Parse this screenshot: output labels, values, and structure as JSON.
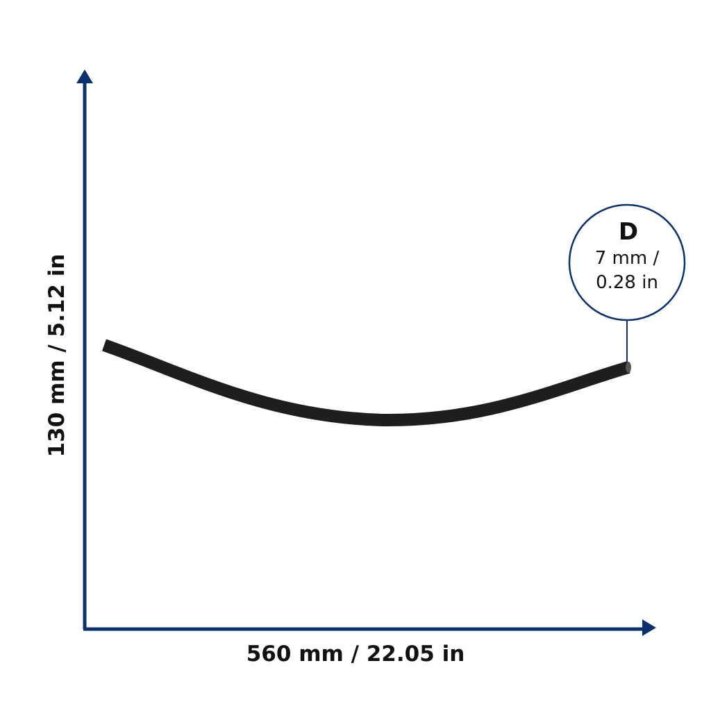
{
  "dimensions": {
    "height_label": "130 mm / 5.12 in",
    "width_label": "560 mm / 22.05 in",
    "diameter": {
      "letter": "D",
      "line1": "7 mm /",
      "line2": "0.28 in"
    }
  }
}
